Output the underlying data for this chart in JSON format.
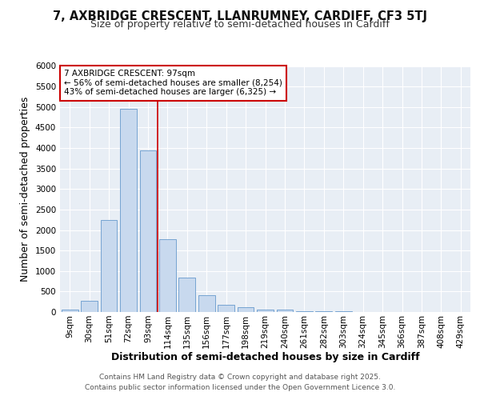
{
  "title_line1": "7, AXBRIDGE CRESCENT, LLANRUMNEY, CARDIFF, CF3 5TJ",
  "title_line2": "Size of property relative to semi-detached houses in Cardiff",
  "xlabel": "Distribution of semi-detached houses by size in Cardiff",
  "ylabel": "Number of semi-detached properties",
  "categories": [
    "9sqm",
    "30sqm",
    "51sqm",
    "72sqm",
    "93sqm",
    "114sqm",
    "135sqm",
    "156sqm",
    "177sqm",
    "198sqm",
    "219sqm",
    "240sqm",
    "261sqm",
    "282sqm",
    "303sqm",
    "324sqm",
    "345sqm",
    "366sqm",
    "387sqm",
    "408sqm",
    "429sqm"
  ],
  "values": [
    50,
    270,
    2250,
    4950,
    3950,
    1780,
    840,
    410,
    175,
    110,
    65,
    50,
    25,
    15,
    10,
    7,
    5,
    4,
    3,
    3,
    2
  ],
  "bar_color": "#c8d9ee",
  "bar_edge_color": "#6699cc",
  "property_line_x": 4.5,
  "annotation_text_line1": "7 AXBRIDGE CRESCENT: 97sqm",
  "annotation_text_line2": "← 56% of semi-detached houses are smaller (8,254)",
  "annotation_text_line3": "43% of semi-detached houses are larger (6,325) →",
  "annotation_box_color": "#ffffff",
  "annotation_box_edge": "#cc0000",
  "line_color": "#cc0000",
  "ylim": [
    0,
    6000
  ],
  "yticks": [
    0,
    500,
    1000,
    1500,
    2000,
    2500,
    3000,
    3500,
    4000,
    4500,
    5000,
    5500,
    6000
  ],
  "bg_color": "#ffffff",
  "plot_bg_color": "#e8eef5",
  "footer_line1": "Contains HM Land Registry data © Crown copyright and database right 2025.",
  "footer_line2": "Contains public sector information licensed under the Open Government Licence 3.0.",
  "title_fontsize": 10.5,
  "subtitle_fontsize": 9,
  "axis_label_fontsize": 9,
  "tick_fontsize": 7.5,
  "footer_fontsize": 6.5,
  "annotation_fontsize": 7.5
}
